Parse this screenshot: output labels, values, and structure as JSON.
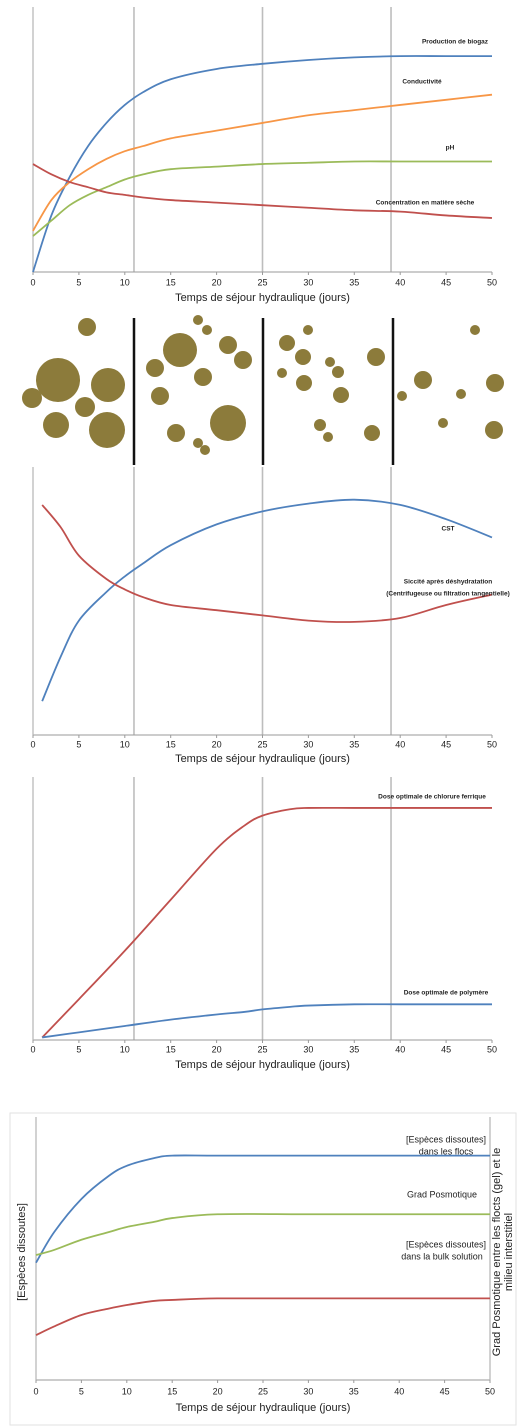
{
  "chart_data": [
    {
      "type": "line",
      "xlabel": "Temps de séjour hydraulique (jours)",
      "xlim": [
        0,
        50
      ],
      "xticks": [
        0,
        5,
        10,
        15,
        20,
        25,
        30,
        35,
        40,
        45,
        50
      ],
      "ylim": [
        0,
        100
      ],
      "vlines": [
        11,
        25,
        39
      ],
      "x": [
        0,
        2,
        4,
        6,
        8,
        10,
        12,
        15,
        20,
        25,
        30,
        35,
        40,
        45,
        50
      ],
      "series": [
        {
          "name": "Production de biogaz",
          "color": "#4f81bd",
          "values": [
            0,
            22,
            37,
            49,
            58,
            65,
            70,
            75,
            79,
            81,
            82.5,
            83.5,
            84,
            84,
            84
          ]
        },
        {
          "name": "Conductivité",
          "color": "#f79646",
          "values": [
            16,
            28,
            35,
            40,
            44,
            47,
            49,
            52,
            55,
            58,
            61,
            63,
            65,
            67,
            69
          ]
        },
        {
          "name": "pH",
          "color": "#9bbb59",
          "values": [
            14,
            20,
            26,
            30,
            33,
            36,
            38,
            40,
            41,
            42,
            42.5,
            43,
            43,
            43,
            43
          ]
        },
        {
          "name": "Concentration en matière sèche",
          "color": "#c0504d",
          "values": [
            42,
            38,
            35,
            33,
            31,
            30,
            29,
            28,
            27,
            26,
            25,
            24,
            23.5,
            22,
            21
          ]
        }
      ]
    },
    {
      "type": "line",
      "xlabel": "Temps de séjour hydraulique (jours)",
      "xlim": [
        0,
        50
      ],
      "xticks": [
        0,
        5,
        10,
        15,
        20,
        25,
        30,
        35,
        40,
        45,
        50
      ],
      "ylim": [
        0,
        100
      ],
      "vlines": [
        11,
        25,
        39
      ],
      "x": [
        1,
        3,
        5,
        8,
        10,
        12,
        15,
        20,
        25,
        30,
        35,
        40,
        45,
        50
      ],
      "series": [
        {
          "name": "CST",
          "color": "#4f81bd",
          "values": [
            13,
            30,
            44,
            55,
            61,
            66,
            73,
            81,
            86,
            89,
            90.5,
            88.5,
            83,
            76
          ]
        },
        {
          "name": "Siccité après déshydratation",
          "color": "#c0504d",
          "values": [
            88.5,
            80,
            69,
            60,
            56,
            53,
            50,
            48,
            46,
            44,
            43.5,
            45,
            50,
            54
          ]
        }
      ],
      "annotations": [
        {
          "text": "(Centrifugeuse ou filtration tangentielle)",
          "color": "#c0504d"
        }
      ]
    },
    {
      "type": "line",
      "xlabel": "Temps de séjour hydraulique (jours)",
      "xlim": [
        0,
        50
      ],
      "xticks": [
        0,
        5,
        10,
        15,
        20,
        25,
        30,
        35,
        40,
        45,
        50
      ],
      "ylim": [
        0,
        100
      ],
      "vlines": [
        11,
        25,
        39
      ],
      "x": [
        1,
        5,
        10,
        15,
        20,
        23,
        25,
        28,
        30,
        35,
        40,
        45,
        50
      ],
      "series": [
        {
          "name": "Dose optimale de chlorure ferrique",
          "color": "#c0504d",
          "values": [
            1,
            16,
            35,
            55,
            75,
            84,
            88,
            90.5,
            91,
            91,
            91,
            91,
            91
          ]
        },
        {
          "name": "Dose optimale de polymère",
          "color": "#4f81bd",
          "values": [
            1,
            3,
            5.5,
            8,
            10,
            11,
            12,
            13,
            13.5,
            14,
            14,
            14,
            14
          ]
        }
      ]
    },
    {
      "type": "line",
      "xlabel": "Temps de séjour hydraulique (jours)",
      "ylabel": "[Espèces dissoutes]",
      "y2label": [
        "Grad Posmotique entre les flocts (gel) et le",
        "milieu interstitiel"
      ],
      "xlim": [
        0,
        50
      ],
      "xticks": [
        0,
        5,
        10,
        15,
        20,
        25,
        30,
        35,
        40,
        45,
        50
      ],
      "ylim": [
        0,
        100
      ],
      "x": [
        0,
        2,
        5,
        8,
        10,
        13,
        15,
        20,
        30,
        40,
        50
      ],
      "series": [
        {
          "name": "[Espèces dissoutes]",
          "color": "#4f81bd",
          "values": [
            46,
            58,
            71,
            80,
            84,
            87,
            88,
            88,
            88,
            88,
            88
          ]
        },
        {
          "name": "Grad Posmotique",
          "color": "#9bbb59",
          "values": [
            49,
            51,
            55,
            58,
            60,
            62,
            63.5,
            65,
            65,
            65,
            65
          ]
        },
        {
          "name": "[Espèces dissoutes]",
          "color": "#c0504d",
          "values": [
            17.6,
            21,
            25.5,
            28,
            29.4,
            31,
            31.4,
            32,
            32,
            32,
            32
          ]
        }
      ],
      "annotations": [
        {
          "text": "dans les flocs",
          "color": "#4f81bd"
        },
        {
          "text": "dans la bulk solution",
          "color": "#c0504d"
        }
      ]
    }
  ]
}
